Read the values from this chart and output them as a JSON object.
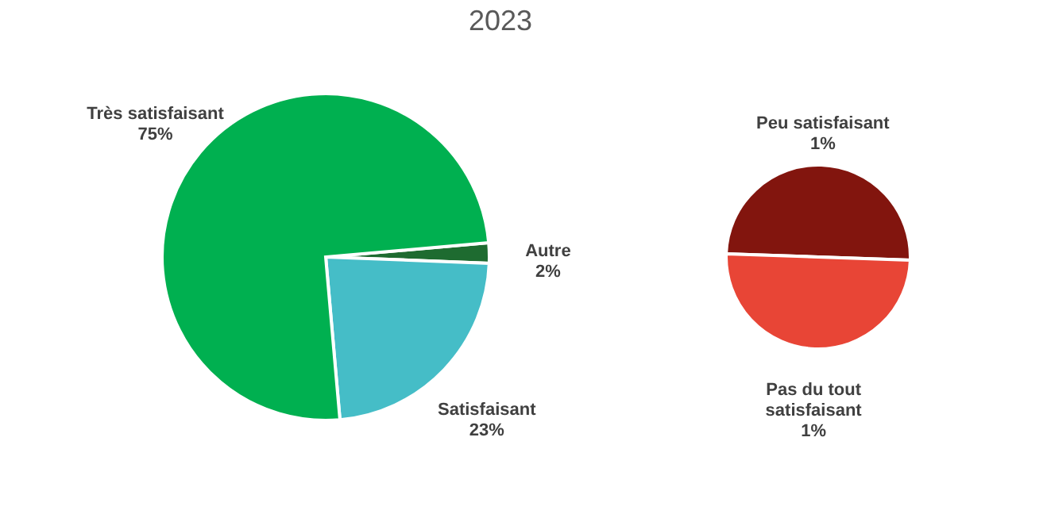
{
  "chart_data": [
    {
      "type": "pie",
      "title": "2023",
      "categories": [
        "Autre",
        "Satisfaisant",
        "Très satisfaisant"
      ],
      "values": [
        2,
        23,
        75
      ],
      "value_labels": [
        "2%",
        "23%",
        "75%"
      ],
      "colors": [
        "#1e6b30",
        "#45bdc7",
        "#00b050"
      ]
    },
    {
      "type": "pie",
      "categories": [
        "Peu satisfaisant",
        "Pas du tout satisfaisant"
      ],
      "values": [
        1,
        1
      ],
      "value_labels": [
        "1%",
        "1%"
      ],
      "colors": [
        "#82150e",
        "#e84536"
      ]
    }
  ]
}
